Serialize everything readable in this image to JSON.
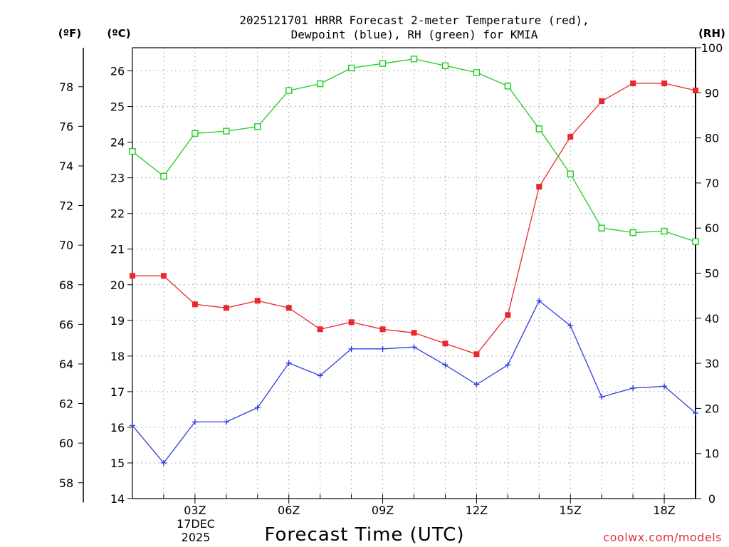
{
  "chart_data": {
    "type": "line",
    "title": "2025121701 HRRR Forecast 2-meter Temperature (red),",
    "subtitle": "Dewpoint (blue), RH (green) for KMIA",
    "xlabel": "Forecast Time (UTC)",
    "left_unit_f": "(ºF)",
    "left_unit_c": "(ºC)",
    "right_unit": "(RH)",
    "credit": "coolwx.com/models",
    "x_hours": [
      1,
      2,
      3,
      4,
      5,
      6,
      7,
      8,
      9,
      10,
      11,
      12,
      13,
      14,
      15,
      16,
      17,
      18,
      19
    ],
    "xlim": [
      1,
      19
    ],
    "x_ticks": [
      {
        "hour": 3,
        "label": "03Z"
      },
      {
        "hour": 6,
        "label": "06Z"
      },
      {
        "hour": 9,
        "label": "09Z"
      },
      {
        "hour": 12,
        "label": "12Z"
      },
      {
        "hour": 15,
        "label": "15Z"
      },
      {
        "hour": 18,
        "label": "18Z"
      }
    ],
    "date_label": [
      "17DEC",
      "2025"
    ],
    "celsius_axis": {
      "ylim": [
        14,
        26.65
      ],
      "ticks": [
        14,
        15,
        16,
        17,
        18,
        19,
        20,
        21,
        22,
        23,
        24,
        25,
        26
      ]
    },
    "fahrenheit_axis": {
      "ticks": [
        58,
        60,
        62,
        64,
        66,
        68,
        70,
        72,
        74,
        76,
        78
      ]
    },
    "rh_axis": {
      "ylim": [
        0,
        100
      ],
      "ticks": [
        0,
        10,
        20,
        30,
        40,
        50,
        60,
        70,
        80,
        90,
        100
      ]
    },
    "series": [
      {
        "name": "2-meter Temperature",
        "unit": "C",
        "color": "#e8282c",
        "marker": "filled-square",
        "values": [
          20.25,
          20.25,
          19.45,
          19.35,
          19.55,
          19.35,
          18.75,
          18.95,
          18.75,
          18.65,
          18.35,
          18.05,
          19.15,
          22.75,
          24.15,
          25.15,
          25.65,
          25.65,
          25.45
        ]
      },
      {
        "name": "Dewpoint",
        "unit": "C",
        "color": "#2c3ce0",
        "marker": "plus",
        "values": [
          16.05,
          15.0,
          16.15,
          16.15,
          16.55,
          17.8,
          17.45,
          18.2,
          18.2,
          18.25,
          17.75,
          17.2,
          17.75,
          19.55,
          18.85,
          16.85,
          17.1,
          17.15,
          16.4
        ]
      },
      {
        "name": "RH",
        "unit": "%",
        "color": "#22cc22",
        "marker": "open-square",
        "values": [
          77,
          71.5,
          81,
          81.5,
          82.5,
          90.5,
          92,
          95.5,
          96.5,
          97.5,
          96,
          94.5,
          91.5,
          82,
          72,
          60,
          59,
          59.3,
          57
        ]
      }
    ]
  }
}
